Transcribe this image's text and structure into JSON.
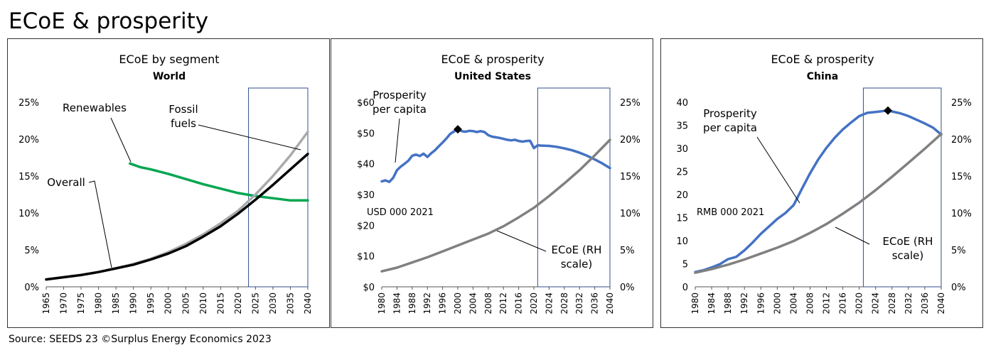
{
  "page": {
    "title": "ECoE & prosperity",
    "source": "Source: SEEDS 23  ©Surplus Energy Economics 2023"
  },
  "chart_data": [
    {
      "type": "line",
      "title": "ECoE by segment",
      "subtitle": "World",
      "xlim": [
        1965,
        2040
      ],
      "ylim": [
        0,
        25
      ],
      "xticks": [
        "1965",
        "1970",
        "1975",
        "1980",
        "1985",
        "1990",
        "1995",
        "2000",
        "2005",
        "2010",
        "2015",
        "2020",
        "2025",
        "2030",
        "2035",
        "2040"
      ],
      "yticks": [
        "0%",
        "5%",
        "10%",
        "15%",
        "20%",
        "25%"
      ],
      "highlight": [
        2023,
        2040
      ],
      "series": [
        {
          "name": "Renewables",
          "color": "#00a651",
          "x": [
            1989,
            1992,
            1995,
            2000,
            2005,
            2010,
            2015,
            2020,
            2025,
            2030,
            2035,
            2040
          ],
          "y": [
            16.7,
            16.2,
            15.9,
            15.3,
            14.6,
            13.9,
            13.3,
            12.7,
            12.3,
            12.0,
            11.7,
            11.7
          ]
        },
        {
          "name": "Fossil fuels",
          "label": "Fossil\nfuels",
          "color": "#aaaaaa",
          "x": [
            1965,
            1970,
            1975,
            1980,
            1985,
            1990,
            1995,
            2000,
            2005,
            2010,
            2015,
            2020,
            2025,
            2030,
            2035,
            2040
          ],
          "y": [
            1.0,
            1.3,
            1.6,
            2.0,
            2.5,
            3.1,
            3.8,
            4.7,
            5.8,
            7.1,
            8.6,
            10.3,
            12.5,
            15.0,
            17.8,
            21.0
          ]
        },
        {
          "name": "Overall",
          "color": "#000000",
          "x": [
            1965,
            1970,
            1975,
            1980,
            1985,
            1990,
            1995,
            2000,
            2005,
            2010,
            2015,
            2020,
            2025,
            2030,
            2035,
            2040
          ],
          "y": [
            1.0,
            1.3,
            1.6,
            2.0,
            2.5,
            3.0,
            3.7,
            4.5,
            5.5,
            6.8,
            8.2,
            9.9,
            11.8,
            13.8,
            15.9,
            18.0
          ]
        }
      ]
    },
    {
      "type": "line",
      "title": "ECoE & prosperity",
      "subtitle": "United States",
      "xlim": [
        1980,
        2040
      ],
      "ylim": [
        0,
        60
      ],
      "y2lim": [
        0,
        25
      ],
      "xticks": [
        "1980",
        "1984",
        "1988",
        "1992",
        "1996",
        "2000",
        "2004",
        "2008",
        "2012",
        "2016",
        "2020",
        "2024",
        "2028",
        "2032",
        "2036",
        "2040"
      ],
      "yticks": [
        "$0",
        "$10",
        "$20",
        "$30",
        "$40",
        "$50",
        "$60"
      ],
      "y2ticks": [
        "0%",
        "5%",
        "10%",
        "15%",
        "20%",
        "25%"
      ],
      "ylabel": "USD 000 2021",
      "highlight": [
        2021,
        2040
      ],
      "peak": {
        "x": 2000,
        "y": 51.2
      },
      "series": [
        {
          "name": "Prosperity per capita",
          "label": "Prosperity\nper capita",
          "color": "#4472c4",
          "axis": "left",
          "x": [
            1980,
            1981,
            1982,
            1983,
            1984,
            1985,
            1986,
            1987,
            1988,
            1989,
            1990,
            1991,
            1992,
            1993,
            1994,
            1995,
            1996,
            1997,
            1998,
            1999,
            2000,
            2001,
            2002,
            2003,
            2004,
            2005,
            2006,
            2007,
            2008,
            2009,
            2010,
            2011,
            2012,
            2013,
            2014,
            2015,
            2016,
            2017,
            2018,
            2019,
            2020,
            2021,
            2022,
            2024,
            2026,
            2028,
            2030,
            2032,
            2034,
            2036,
            2038,
            2040
          ],
          "y": [
            34.3,
            34.6,
            34.1,
            35.4,
            37.9,
            39.1,
            40.0,
            41.0,
            42.6,
            43.0,
            42.5,
            43.3,
            42.2,
            43.4,
            44.4,
            45.7,
            46.9,
            48.2,
            49.7,
            50.5,
            51.2,
            50.6,
            50.4,
            50.7,
            50.6,
            50.3,
            50.6,
            50.3,
            49.3,
            48.8,
            48.6,
            48.4,
            48.1,
            47.8,
            47.6,
            47.8,
            47.4,
            47.2,
            47.4,
            47.5,
            45.1,
            46.0,
            45.9,
            45.8,
            45.5,
            45.0,
            44.4,
            43.6,
            42.6,
            41.4,
            40.1,
            38.6
          ]
        },
        {
          "name": "ECoE (RH scale)",
          "label": "ECoE (RH\nscale)",
          "color": "#808080",
          "axis": "right",
          "x": [
            1980,
            1984,
            1988,
            1992,
            1996,
            2000,
            2004,
            2008,
            2012,
            2016,
            2020,
            2024,
            2028,
            2032,
            2036,
            2040
          ],
          "y": [
            2.1,
            2.6,
            3.3,
            4.0,
            4.8,
            5.6,
            6.4,
            7.2,
            8.2,
            9.4,
            10.7,
            12.3,
            14.0,
            15.8,
            17.8,
            19.9
          ]
        }
      ]
    },
    {
      "type": "line",
      "title": "ECoE & prosperity",
      "subtitle": "China",
      "xlim": [
        1980,
        2040
      ],
      "ylim": [
        0,
        40
      ],
      "y2lim": [
        0,
        25
      ],
      "xticks": [
        "1980",
        "1984",
        "1988",
        "1992",
        "1996",
        "2000",
        "2004",
        "2008",
        "2012",
        "2016",
        "2020",
        "2024",
        "2028",
        "2032",
        "2036",
        "2040"
      ],
      "yticks": [
        "0",
        "5",
        "10",
        "15",
        "20",
        "25",
        "30",
        "35",
        "40"
      ],
      "y2ticks": [
        "0%",
        "5%",
        "10%",
        "15%",
        "20%",
        "25%"
      ],
      "ylabel": "RMB 000 2021",
      "highlight": [
        2021,
        2040
      ],
      "peak": {
        "x": 2027,
        "y": 38.2
      },
      "series": [
        {
          "name": "Prosperity per capita",
          "label": "Prosperity\nper capita",
          "color": "#4472c4",
          "axis": "left",
          "x": [
            1980,
            1982,
            1984,
            1986,
            1988,
            1990,
            1992,
            1994,
            1996,
            1998,
            2000,
            2002,
            2004,
            2006,
            2008,
            2010,
            2012,
            2014,
            2016,
            2018,
            2020,
            2022,
            2024,
            2026,
            2027,
            2028,
            2030,
            2032,
            2034,
            2036,
            2038,
            2040
          ],
          "y": [
            3.2,
            3.6,
            4.2,
            4.9,
            6.0,
            6.5,
            7.9,
            9.6,
            11.5,
            13.1,
            14.7,
            16.0,
            17.7,
            21.2,
            24.6,
            27.6,
            30.1,
            32.3,
            34.1,
            35.6,
            37.0,
            37.7,
            37.9,
            38.1,
            38.2,
            38.0,
            37.6,
            37.0,
            36.2,
            35.4,
            34.5,
            33.0
          ]
        },
        {
          "name": "ECoE (RH scale)",
          "label": "ECoE (RH\nscale)",
          "color": "#808080",
          "axis": "right",
          "x": [
            1980,
            1984,
            1988,
            1992,
            1996,
            2000,
            2004,
            2008,
            2012,
            2016,
            2020,
            2024,
            2028,
            2032,
            2036,
            2040
          ],
          "y": [
            1.9,
            2.4,
            3.0,
            3.7,
            4.5,
            5.3,
            6.2,
            7.3,
            8.5,
            9.9,
            11.4,
            13.1,
            14.9,
            16.8,
            18.7,
            20.7
          ]
        }
      ]
    }
  ]
}
